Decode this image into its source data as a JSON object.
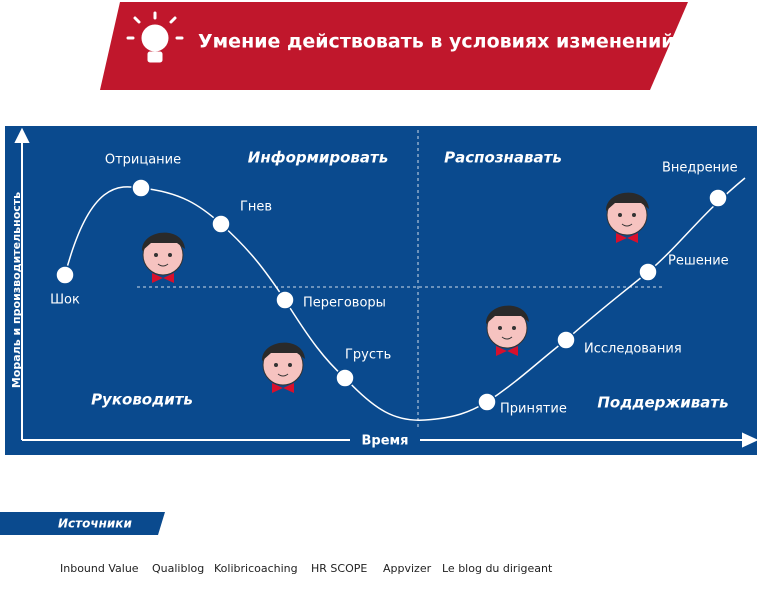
{
  "header": {
    "title": "Умение действовать в условиях изменений"
  },
  "axes": {
    "y_label": "Мораль и производительность",
    "x_label": "Время"
  },
  "quadrants": [
    "Информировать",
    "Распознавать",
    "Руководить",
    "Поддерживать"
  ],
  "stages": [
    "Шок",
    "Отрицание",
    "Гнев",
    "Переговоры",
    "Грусть",
    "Принятие",
    "Исследования",
    "Решение",
    "Внедрение"
  ],
  "sources": {
    "title": "Источники",
    "items": [
      "Inbound Value",
      "Qualiblog",
      "Kolibricoaching",
      "HR SCOPE",
      "Appvizer",
      "Le blog du dirigeant"
    ]
  }
}
